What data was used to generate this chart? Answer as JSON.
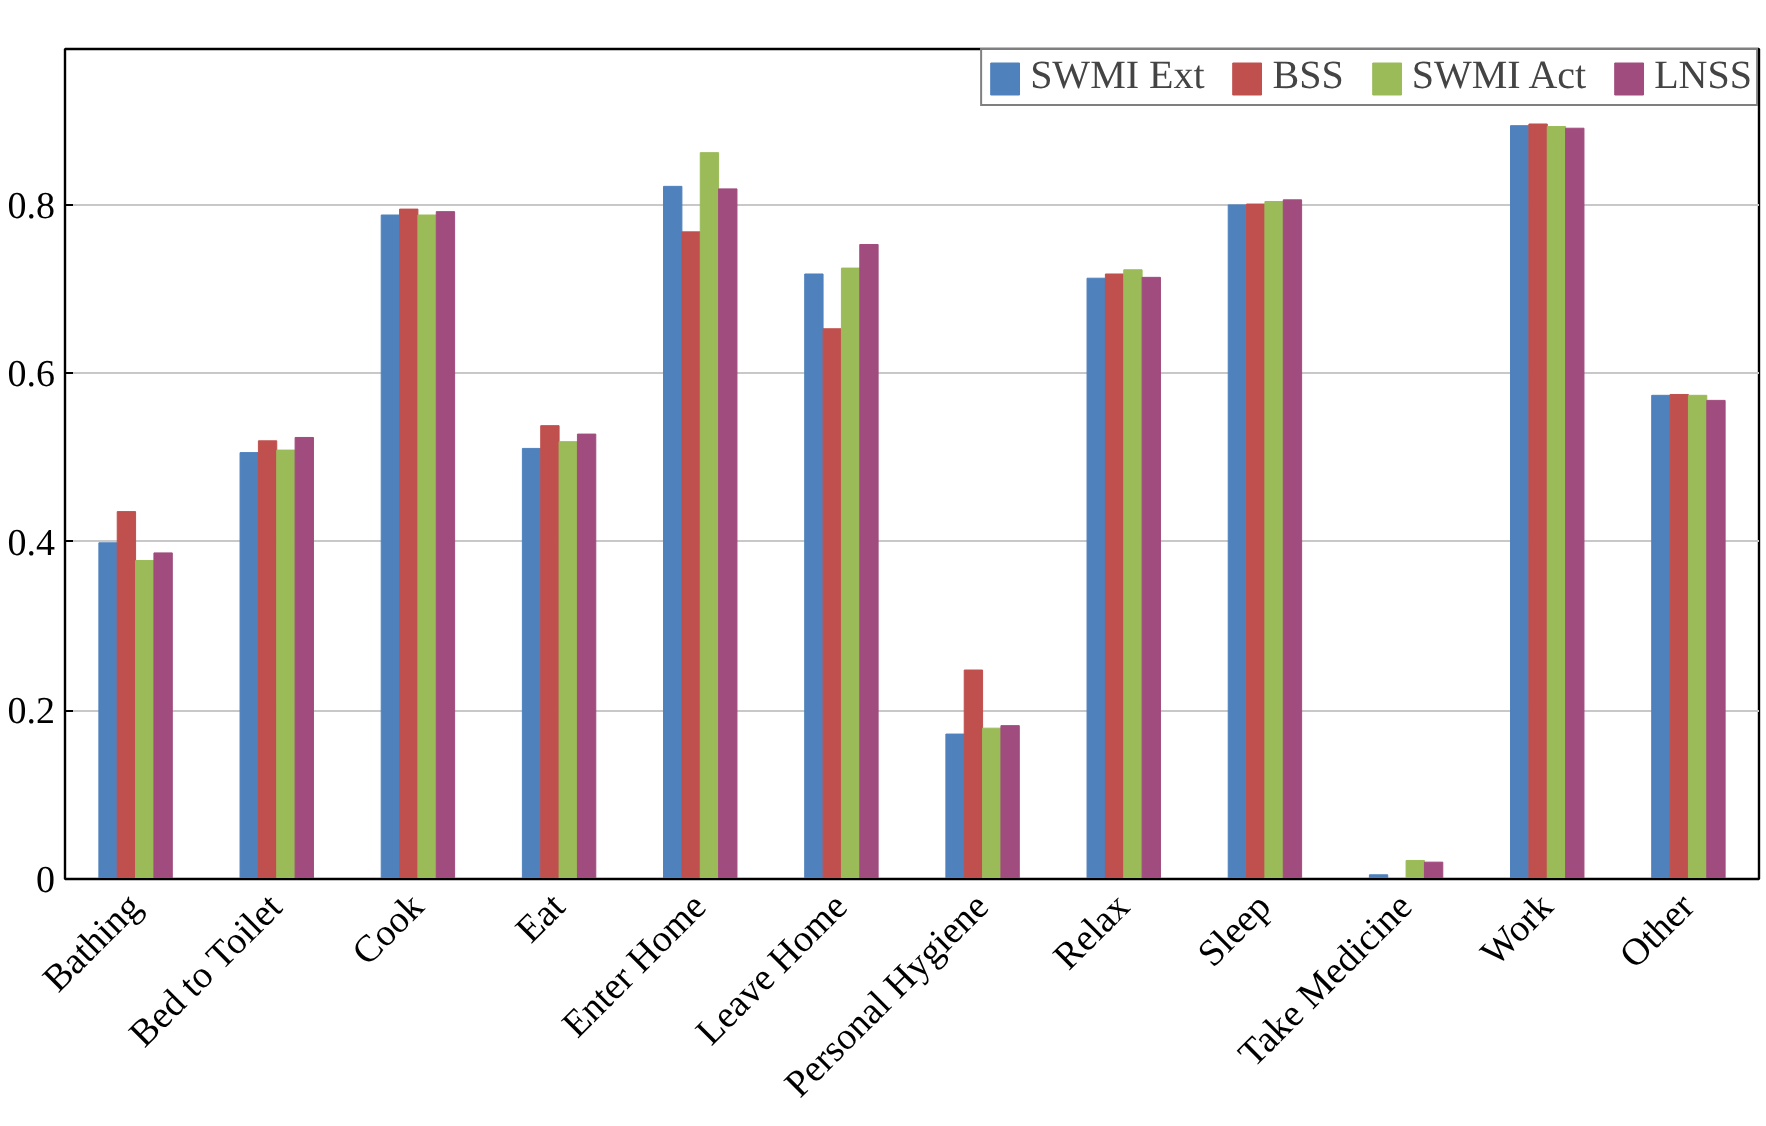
{
  "chart_data": {
    "type": "bar",
    "categories": [
      "Bathing",
      "Bed to Toilet",
      "Cook",
      "Eat",
      "Enter Home",
      "Leave Home",
      "Personal Hygiene",
      "Relax",
      "Sleep",
      "Take Medicine",
      "Work",
      "Other"
    ],
    "series": [
      {
        "name": "SWMI Ext",
        "color": "#4f81bd",
        "values": [
          0.399,
          0.506,
          0.788,
          0.511,
          0.822,
          0.718,
          0.172,
          0.713,
          0.8,
          0.005,
          0.894,
          0.574
        ]
      },
      {
        "name": "BSS",
        "color": "#c0504d",
        "values": [
          0.436,
          0.52,
          0.795,
          0.538,
          0.768,
          0.653,
          0.248,
          0.718,
          0.801,
          null,
          0.896,
          0.575
        ]
      },
      {
        "name": "SWMI Act",
        "color": "#9bbb59",
        "values": [
          0.378,
          0.509,
          0.788,
          0.519,
          0.862,
          0.725,
          0.179,
          0.723,
          0.804,
          0.022,
          0.893,
          0.574
        ]
      },
      {
        "name": "LNSS",
        "color": "#a04c7e",
        "values": [
          0.387,
          0.524,
          0.792,
          0.528,
          0.819,
          0.753,
          0.182,
          0.714,
          0.806,
          0.02,
          0.891,
          0.568
        ]
      }
    ],
    "ylim": [
      0,
      0.985
    ],
    "yticks": [
      0,
      0.2,
      0.4,
      0.6,
      0.8
    ],
    "grid": "y",
    "legend": "top right"
  }
}
